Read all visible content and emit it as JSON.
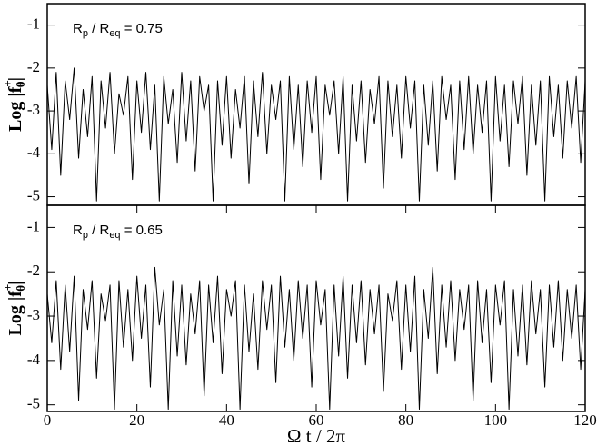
{
  "chart_data": [
    {
      "type": "line",
      "color": "#000000",
      "annotation": {
        "r1": "R",
        "s1": "p",
        "mid": " / R",
        "s2": "eq",
        "end": " = 0.75"
      },
      "ylabel": {
        "main": "Log |f",
        "sub": "θ",
        "sup": "+",
        "end": "|"
      },
      "xlim": [
        0,
        120
      ],
      "ylim": [
        -5.2,
        -0.5
      ],
      "yticks": [
        -5,
        -4,
        -3,
        -2,
        -1
      ],
      "x": [
        0,
        1,
        2,
        3,
        4,
        5,
        6,
        7,
        8,
        9,
        10,
        11,
        12,
        13,
        14,
        15,
        16,
        17,
        18,
        19,
        20,
        21,
        22,
        23,
        24,
        25,
        26,
        27,
        28,
        29,
        30,
        31,
        32,
        33,
        34,
        35,
        36,
        37,
        38,
        39,
        40,
        41,
        42,
        43,
        44,
        45,
        46,
        47,
        48,
        49,
        50,
        51,
        52,
        53,
        54,
        55,
        56,
        57,
        58,
        59,
        60,
        61,
        62,
        63,
        64,
        65,
        66,
        67,
        68,
        69,
        70,
        71,
        72,
        73,
        74,
        75,
        76,
        77,
        78,
        79,
        80,
        81,
        82,
        83,
        84,
        85,
        86,
        87,
        88,
        89,
        90,
        91,
        92,
        93,
        94,
        95,
        96,
        97,
        98,
        99,
        100,
        101,
        102,
        103,
        104,
        105,
        106,
        107,
        108,
        109,
        110,
        111,
        112,
        113,
        114,
        115,
        116,
        117,
        118,
        119,
        120
      ],
      "values": [
        -2.4,
        -3.9,
        -2.1,
        -4.5,
        -2.3,
        -3.2,
        -2.0,
        -4.1,
        -2.5,
        -3.6,
        -2.2,
        -5.1,
        -2.3,
        -3.4,
        -2.1,
        -4.0,
        -2.6,
        -3.1,
        -2.2,
        -4.6,
        -2.3,
        -3.5,
        -2.1,
        -3.9,
        -2.4,
        -5.1,
        -2.2,
        -3.3,
        -2.5,
        -4.2,
        -2.1,
        -3.7,
        -2.3,
        -4.4,
        -2.2,
        -3.0,
        -2.4,
        -5.1,
        -2.3,
        -3.8,
        -2.2,
        -4.1,
        -2.5,
        -3.4,
        -2.2,
        -4.7,
        -2.3,
        -3.6,
        -2.1,
        -4.0,
        -2.4,
        -3.2,
        -2.3,
        -5.1,
        -2.2,
        -3.9,
        -2.4,
        -4.3,
        -2.3,
        -3.5,
        -2.2,
        -4.6,
        -2.4,
        -3.1,
        -2.3,
        -4.0,
        -2.2,
        -5.1,
        -2.4,
        -3.7,
        -2.3,
        -4.2,
        -2.5,
        -3.3,
        -2.2,
        -4.8,
        -2.3,
        -3.6,
        -2.4,
        -4.1,
        -2.2,
        -3.4,
        -2.3,
        -5.1,
        -2.4,
        -3.8,
        -2.3,
        -4.4,
        -2.2,
        -3.2,
        -2.4,
        -4.6,
        -2.3,
        -3.9,
        -2.2,
        -4.0,
        -2.4,
        -3.5,
        -2.3,
        -5.1,
        -2.2,
        -3.7,
        -2.4,
        -4.3,
        -2.3,
        -3.3,
        -2.2,
        -4.5,
        -2.4,
        -3.8,
        -2.3,
        -5.1,
        -2.2,
        -3.6,
        -2.4,
        -4.1,
        -2.3,
        -3.4,
        -2.2,
        -4.2,
        -2.3
      ]
    },
    {
      "type": "line",
      "color": "#000000",
      "annotation": {
        "r1": "R",
        "s1": "p",
        "mid": " / R",
        "s2": "eq",
        "end": " = 0.65"
      },
      "ylabel": {
        "main": "Log |f",
        "sub": "θ",
        "sup": "+",
        "end": "|"
      },
      "xlabel": "Ω t / 2π",
      "xlim": [
        0,
        120
      ],
      "xticks": [
        0,
        20,
        40,
        60,
        80,
        100,
        120
      ],
      "ylim": [
        -5.15,
        -0.5
      ],
      "yticks": [
        -5,
        -4,
        -3,
        -2,
        -1
      ],
      "x": [
        0,
        1,
        2,
        3,
        4,
        5,
        6,
        7,
        8,
        9,
        10,
        11,
        12,
        13,
        14,
        15,
        16,
        17,
        18,
        19,
        20,
        21,
        22,
        23,
        24,
        25,
        26,
        27,
        28,
        29,
        30,
        31,
        32,
        33,
        34,
        35,
        36,
        37,
        38,
        39,
        40,
        41,
        42,
        43,
        44,
        45,
        46,
        47,
        48,
        49,
        50,
        51,
        52,
        53,
        54,
        55,
        56,
        57,
        58,
        59,
        60,
        61,
        62,
        63,
        64,
        65,
        66,
        67,
        68,
        69,
        70,
        71,
        72,
        73,
        74,
        75,
        76,
        77,
        78,
        79,
        80,
        81,
        82,
        83,
        84,
        85,
        86,
        87,
        88,
        89,
        90,
        91,
        92,
        93,
        94,
        95,
        96,
        97,
        98,
        99,
        100,
        101,
        102,
        103,
        104,
        105,
        106,
        107,
        108,
        109,
        110,
        111,
        112,
        113,
        114,
        115,
        116,
        117,
        118,
        119,
        120
      ],
      "values": [
        -2.5,
        -3.6,
        -2.2,
        -4.2,
        -2.3,
        -3.8,
        -2.1,
        -4.9,
        -2.4,
        -3.3,
        -2.2,
        -4.4,
        -2.5,
        -3.1,
        -2.3,
        -5.1,
        -2.2,
        -3.7,
        -2.4,
        -4.0,
        -2.1,
        -3.5,
        -2.3,
        -4.6,
        -1.9,
        -3.2,
        -2.4,
        -5.1,
        -2.2,
        -3.9,
        -2.3,
        -4.1,
        -2.5,
        -3.4,
        -2.2,
        -4.8,
        -2.3,
        -3.6,
        -2.1,
        -4.3,
        -2.4,
        -3.0,
        -2.2,
        -5.1,
        -2.3,
        -3.8,
        -2.5,
        -4.2,
        -2.2,
        -3.3,
        -2.3,
        -4.5,
        -2.1,
        -3.7,
        -2.4,
        -4.0,
        -2.2,
        -3.5,
        -2.3,
        -4.6,
        -2.2,
        -3.2,
        -2.4,
        -5.1,
        -2.3,
        -3.9,
        -2.1,
        -4.4,
        -2.3,
        -3.6,
        -2.2,
        -4.1,
        -2.4,
        -3.4,
        -2.3,
        -4.7,
        -2.5,
        -3.1,
        -2.2,
        -4.2,
        -2.3,
        -3.8,
        -2.1,
        -5.1,
        -2.4,
        -3.5,
        -1.9,
        -4.3,
        -2.3,
        -3.7,
        -2.2,
        -4.0,
        -2.4,
        -3.3,
        -2.3,
        -4.9,
        -2.2,
        -3.6,
        -2.4,
        -4.5,
        -2.3,
        -3.2,
        -2.2,
        -5.1,
        -2.4,
        -3.9,
        -2.3,
        -4.1,
        -2.2,
        -3.4,
        -2.4,
        -4.6,
        -2.3,
        -3.7,
        -2.2,
        -4.0,
        -2.4,
        -3.5,
        -2.3,
        -4.2,
        -2.4
      ]
    }
  ]
}
